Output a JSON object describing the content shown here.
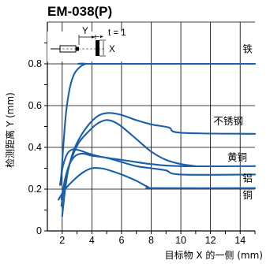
{
  "chart_data": {
    "type": "line",
    "title": "EM-038(P)",
    "xlabel": "目标物 X 的一侧 (mm)",
    "ylabel": "检测距离 Y (mm)",
    "xlim": [
      1,
      15
    ],
    "ylim": [
      0,
      1.0
    ],
    "x_ticks": [
      "2",
      "4",
      "6",
      "8",
      "10",
      "12",
      "14"
    ],
    "y_ticks": [
      "0",
      "0.2",
      "0.4",
      "0.6",
      "0.8"
    ],
    "grid": true,
    "series": [
      {
        "name": "铁",
        "lines": [
          [
            [
              1.9,
              0.22
            ],
            [
              2.05,
              0.38
            ],
            [
              2.25,
              0.56
            ],
            [
              2.5,
              0.68
            ],
            [
              2.8,
              0.75
            ],
            [
              3.2,
              0.785
            ],
            [
              3.6,
              0.8
            ],
            [
              4.0,
              0.8
            ],
            [
              15.0,
              0.8
            ]
          ]
        ]
      },
      {
        "name": "不锈钢",
        "lines": [
          [
            [
              2.0,
              0.07
            ],
            [
              2.15,
              0.17
            ],
            [
              2.4,
              0.29
            ],
            [
              2.8,
              0.39
            ],
            [
              3.3,
              0.46
            ],
            [
              3.8,
              0.51
            ],
            [
              4.3,
              0.545
            ],
            [
              4.7,
              0.56
            ],
            [
              5.2,
              0.565
            ],
            [
              6.0,
              0.555
            ],
            [
              7.0,
              0.53
            ],
            [
              8.0,
              0.51
            ],
            [
              9.2,
              0.495
            ],
            [
              10.0,
              0.47
            ],
            [
              15.0,
              0.465
            ]
          ],
          [
            [
              1.95,
              0.12
            ],
            [
              2.2,
              0.24
            ],
            [
              2.6,
              0.34
            ],
            [
              3.1,
              0.42
            ],
            [
              3.7,
              0.47
            ],
            [
              4.3,
              0.51
            ],
            [
              4.9,
              0.53
            ],
            [
              5.4,
              0.525
            ],
            [
              6.0,
              0.5
            ],
            [
              7.0,
              0.44
            ],
            [
              8.0,
              0.38
            ],
            [
              9.0,
              0.34
            ],
            [
              10.0,
              0.32
            ],
            [
              11.0,
              0.31
            ]
          ]
        ]
      },
      {
        "name": "黄铜",
        "lines": [
          [
            [
              1.85,
              0.22
            ],
            [
              2.05,
              0.31
            ],
            [
              2.35,
              0.37
            ],
            [
              2.7,
              0.39
            ],
            [
              3.2,
              0.385
            ],
            [
              3.8,
              0.37
            ],
            [
              4.6,
              0.355
            ],
            [
              5.5,
              0.345
            ],
            [
              6.5,
              0.335
            ],
            [
              8.0,
              0.32
            ],
            [
              10.0,
              0.31
            ],
            [
              15.0,
              0.31
            ]
          ]
        ]
      },
      {
        "name": "铝",
        "lines": [
          [
            [
              1.95,
              0.15
            ],
            [
              2.2,
              0.25
            ],
            [
              2.5,
              0.32
            ],
            [
              2.9,
              0.36
            ],
            [
              3.4,
              0.37
            ],
            [
              4.0,
              0.36
            ],
            [
              5.0,
              0.35
            ],
            [
              6.0,
              0.33
            ],
            [
              7.0,
              0.31
            ],
            [
              8.0,
              0.3
            ],
            [
              9.0,
              0.29
            ],
            [
              10.0,
              0.27
            ],
            [
              15.0,
              0.27
            ]
          ]
        ]
      },
      {
        "name": "铜",
        "lines": [
          [
            [
              1.75,
              0.15
            ],
            [
              2.2,
              0.2
            ],
            [
              2.8,
              0.245
            ],
            [
              3.4,
              0.28
            ],
            [
              4.0,
              0.3
            ],
            [
              4.6,
              0.3
            ],
            [
              5.2,
              0.29
            ],
            [
              6.0,
              0.27
            ],
            [
              7.0,
              0.24
            ],
            [
              7.8,
              0.21
            ],
            [
              8.3,
              0.205
            ],
            [
              15.0,
              0.205
            ]
          ]
        ]
      }
    ],
    "label_positions": {
      "铁": [
        14.5,
        0.855
      ],
      "不锈钢": [
        13.2,
        0.51
      ],
      "黄铜": [
        13.8,
        0.335
      ],
      "铝": [
        14.5,
        0.235
      ],
      "铜": [
        14.5,
        0.155
      ]
    },
    "line_color": "#1a5fa8"
  },
  "inset": {
    "y_label": "Y",
    "x_label": "X",
    "t_label": "t = 1"
  }
}
